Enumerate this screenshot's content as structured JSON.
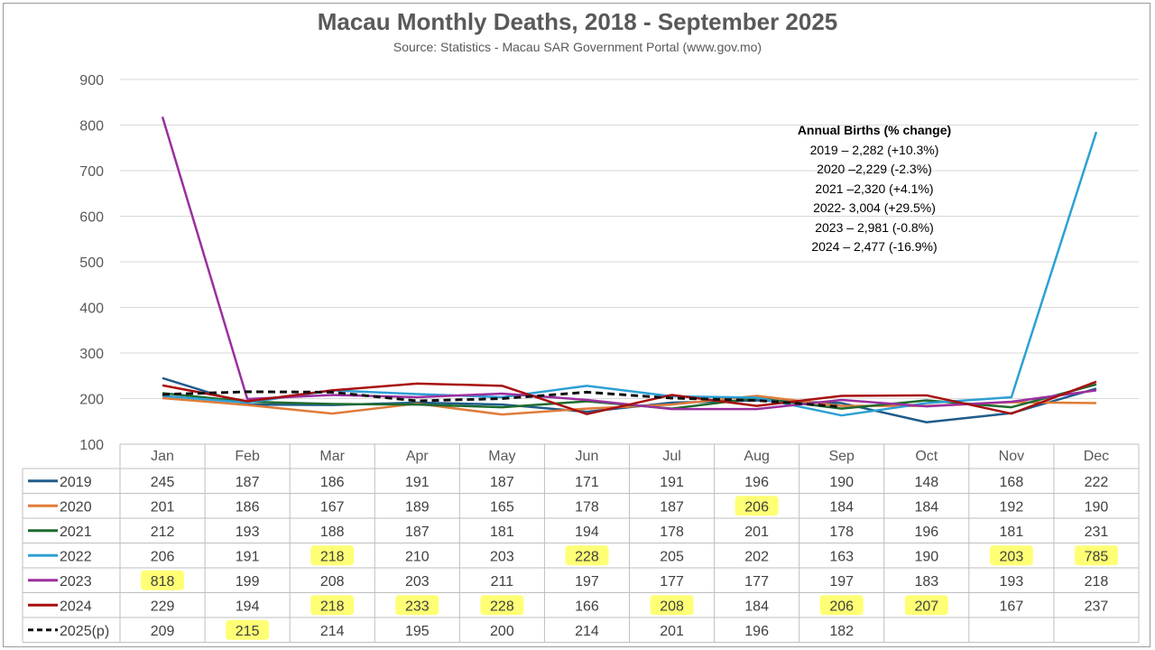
{
  "chart_data": {
    "type": "line",
    "title": "Macau Monthly Deaths, 2018 - September 2025",
    "subtitle": "Source: Statistics - Macau SAR Government Portal (www.gov.mo)",
    "xlabel": "",
    "ylabel": "",
    "ylim": [
      100,
      900
    ],
    "yticks": [
      "100",
      "200",
      "300",
      "400",
      "500",
      "600",
      "700",
      "800",
      "900"
    ],
    "grid": true,
    "categories": [
      "Jan",
      "Feb",
      "Mar",
      "Apr",
      "May",
      "Jun",
      "Jul",
      "Aug",
      "Sep",
      "Oct",
      "Nov",
      "Dec"
    ],
    "series": [
      {
        "name": "2019",
        "color": "#1f5c8b",
        "dashed": false,
        "values": [
          245,
          187,
          186,
          191,
          187,
          171,
          191,
          196,
          190,
          148,
          168,
          222
        ],
        "highlight": []
      },
      {
        "name": "2020",
        "color": "#e07b39",
        "dashed": false,
        "values": [
          201,
          186,
          167,
          189,
          165,
          178,
          187,
          206,
          184,
          184,
          192,
          190
        ],
        "highlight": [
          7
        ]
      },
      {
        "name": "2021",
        "color": "#1e6b2e",
        "dashed": false,
        "values": [
          212,
          193,
          188,
          187,
          181,
          194,
          178,
          201,
          178,
          196,
          181,
          231
        ],
        "highlight": []
      },
      {
        "name": "2022",
        "color": "#2da0d4",
        "dashed": false,
        "values": [
          206,
          191,
          218,
          210,
          203,
          228,
          205,
          202,
          163,
          190,
          203,
          785
        ],
        "highlight": [
          2,
          5,
          10,
          11
        ]
      },
      {
        "name": "2023",
        "color": "#9b2f9e",
        "dashed": false,
        "values": [
          818,
          199,
          208,
          203,
          211,
          197,
          177,
          177,
          197,
          183,
          193,
          218
        ],
        "highlight": [
          0
        ]
      },
      {
        "name": "2024",
        "color": "#a80f0f",
        "dashed": false,
        "values": [
          229,
          194,
          218,
          233,
          228,
          166,
          208,
          184,
          206,
          207,
          167,
          237
        ],
        "highlight": [
          2,
          3,
          4,
          6,
          8,
          9
        ]
      },
      {
        "name": "2025(p)",
        "color": "#111111",
        "dashed": true,
        "values": [
          209,
          215,
          214,
          195,
          200,
          214,
          201,
          196,
          182,
          null,
          null,
          null
        ],
        "highlight": [
          1
        ]
      }
    ],
    "highlight_color": "#ffff66",
    "annotation": {
      "title": "Annual Births (% change)",
      "lines": [
        "2019 – 2,282 (+10.3%)",
        "2020 –2,229 (-2.3%)",
        "2021 –2,320 (+4.1%)",
        "2022- 3,004 (+29.5%)",
        "2023 – 2,981 (-0.8%)",
        "2024 – 2,477 (-16.9%)"
      ]
    }
  }
}
